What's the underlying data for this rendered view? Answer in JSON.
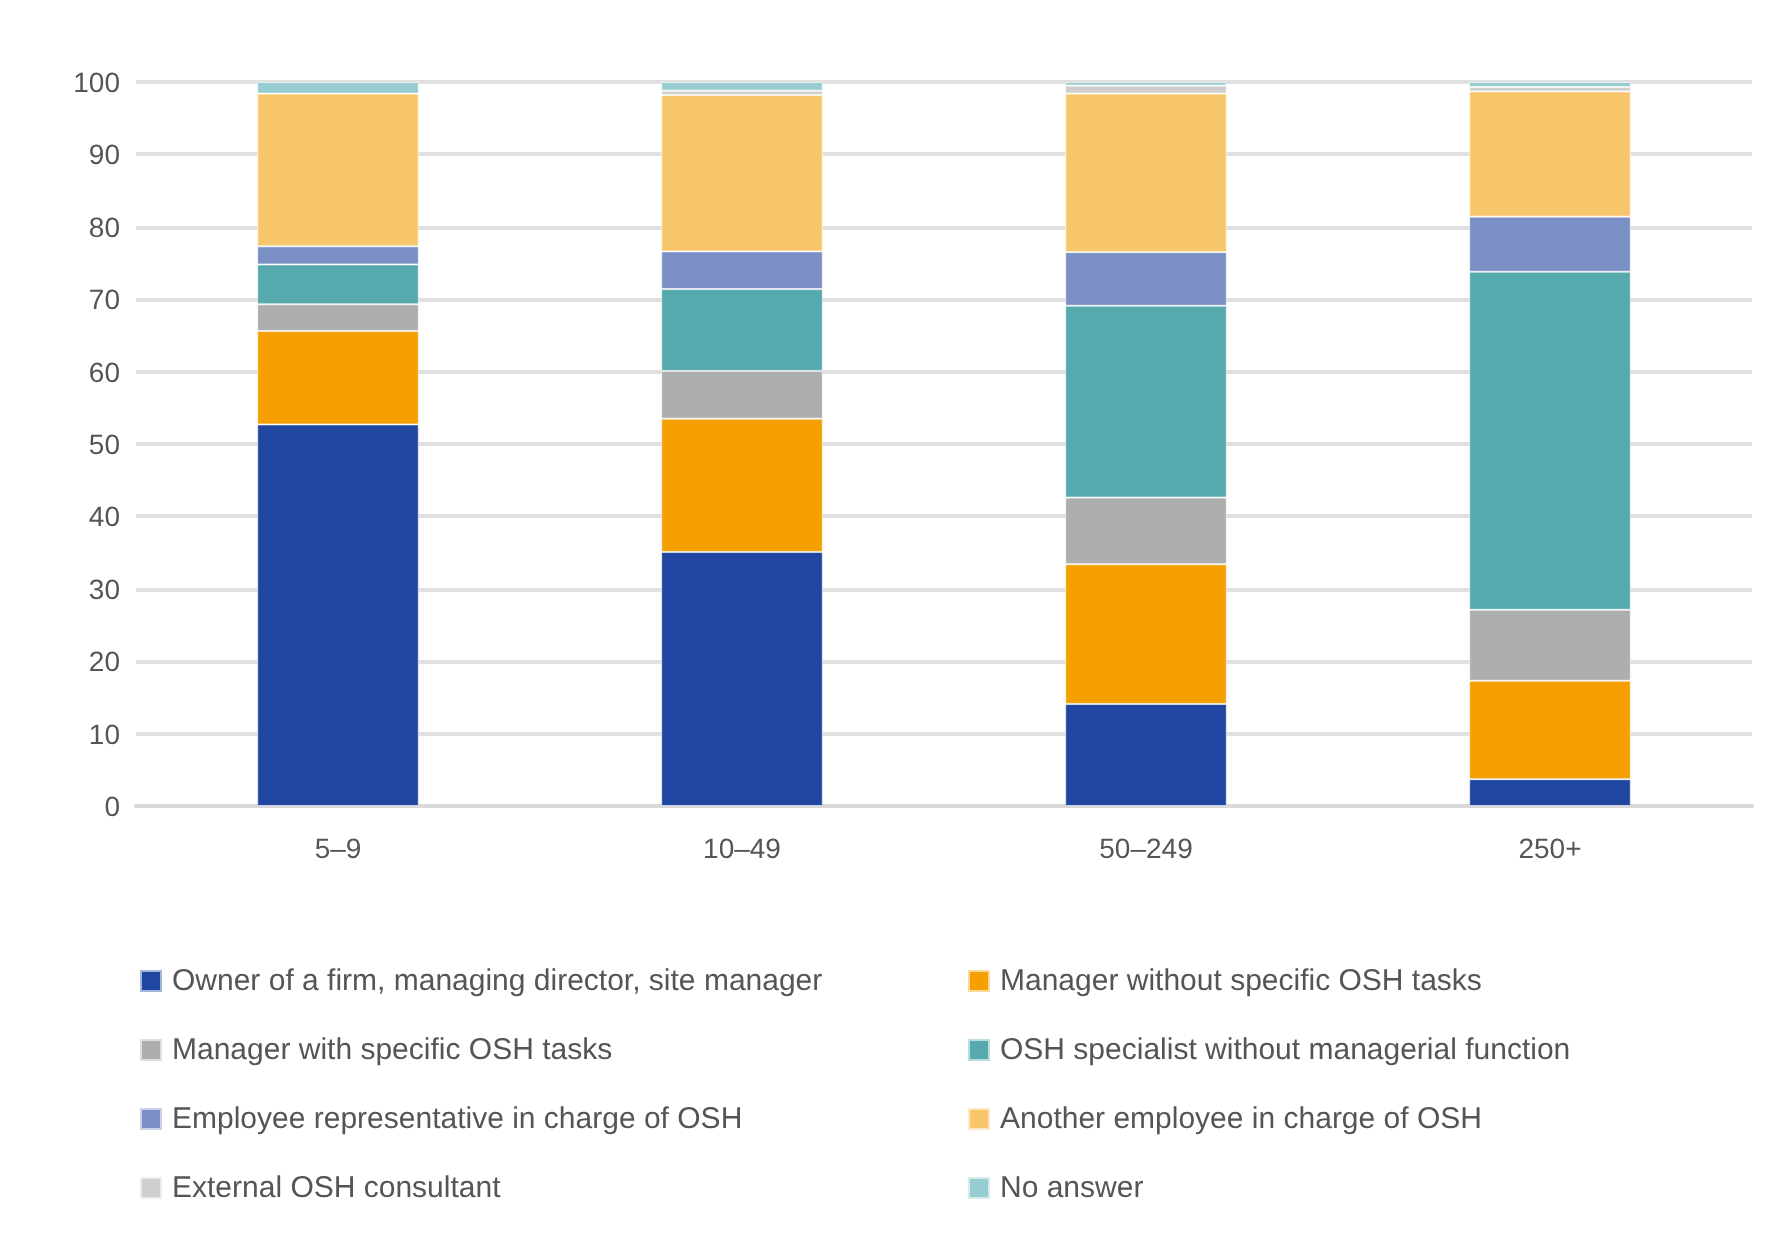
{
  "chart_data": {
    "type": "bar",
    "stacked": true,
    "categories": [
      "5–9",
      "10–49",
      "50–249",
      "250+"
    ],
    "series": [
      {
        "name": "Owner of a firm, managing director, site manager",
        "color": "#1f46a0",
        "values": [
          52.7,
          35.1,
          14.1,
          3.7
        ]
      },
      {
        "name": "Manager without specific OSH tasks",
        "color": "#f5a000",
        "values": [
          12.9,
          18.4,
          19.3,
          13.6
        ]
      },
      {
        "name": "Manager with specific OSH tasks",
        "color": "#adaeae",
        "values": [
          3.7,
          6.6,
          9.2,
          9.8
        ]
      },
      {
        "name": "OSH specialist without managerial function",
        "color": "#56aaad",
        "values": [
          5.5,
          11.3,
          26.5,
          46.7
        ]
      },
      {
        "name": "Employee representative in charge of OSH",
        "color": "#7a8fc5",
        "values": [
          2.5,
          5.2,
          7.4,
          7.6
        ]
      },
      {
        "name": "Another employee in charge of OSH",
        "color": "#f8c66a",
        "values": [
          21.1,
          21.6,
          21.9,
          17.3
        ]
      },
      {
        "name": "External OSH consultant",
        "color": "#cfcfcf",
        "values": [
          0,
          0.6,
          1.1,
          0.6
        ]
      },
      {
        "name": "No answer",
        "color": "#97cdd0",
        "values": [
          1.6,
          1.2,
          0.5,
          0.7
        ]
      }
    ],
    "ylim": [
      0,
      100
    ],
    "yticks": [
      0,
      10,
      20,
      30,
      40,
      50,
      60,
      70,
      80,
      90,
      100
    ],
    "grid": "y",
    "legend": "bottom"
  }
}
